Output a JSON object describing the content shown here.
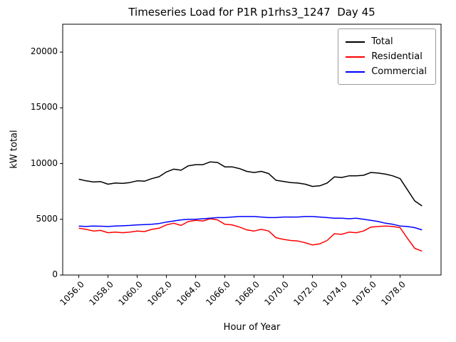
{
  "chart_data": {
    "type": "line",
    "title": "Timeseries Load for P1R p1rhs3_1247  Day 45",
    "xlabel": "Hour of Year",
    "ylabel": "kW total",
    "xlim": [
      1054.9,
      1080.8
    ],
    "ylim": [
      0,
      22500
    ],
    "grid": false,
    "legend_position": "upper right",
    "x_tick_labels": [
      "1056.0",
      "1058.0",
      "1060.0",
      "1062.0",
      "1064.0",
      "1066.0",
      "1068.0",
      "1070.0",
      "1072.0",
      "1074.0",
      "1076.0",
      "1078.0"
    ],
    "y_tick_labels": [
      "0",
      "5000",
      "10000",
      "15000",
      "20000"
    ],
    "x": [
      1056.0,
      1056.5,
      1057.0,
      1057.5,
      1058.0,
      1058.5,
      1059.0,
      1059.5,
      1060.0,
      1060.5,
      1061.0,
      1061.5,
      1062.0,
      1062.5,
      1063.0,
      1063.5,
      1064.0,
      1064.5,
      1065.0,
      1065.5,
      1066.0,
      1066.5,
      1067.0,
      1067.5,
      1068.0,
      1068.5,
      1069.0,
      1069.5,
      1070.0,
      1070.5,
      1071.0,
      1071.5,
      1072.0,
      1072.5,
      1073.0,
      1073.5,
      1074.0,
      1074.5,
      1075.0,
      1075.5,
      1076.0,
      1076.5,
      1077.0,
      1077.5,
      1078.0,
      1078.5,
      1079.0,
      1079.5
    ],
    "series": [
      {
        "name": "Total",
        "color": "#000000",
        "values": [
          8600,
          8450,
          8350,
          8380,
          8150,
          8250,
          8220,
          8300,
          8450,
          8420,
          8650,
          8820,
          9250,
          9500,
          9400,
          9800,
          9900,
          9900,
          10150,
          10100,
          9700,
          9700,
          9550,
          9300,
          9200,
          9300,
          9100,
          8500,
          8400,
          8300,
          8250,
          8150,
          7950,
          8000,
          8250,
          8800,
          8750,
          8900,
          8900,
          8950,
          9200,
          9150,
          9050,
          8900,
          8650,
          7650,
          6650,
          6200
        ]
      },
      {
        "name": "Residential",
        "color": "#ff0000",
        "values": [
          4200,
          4100,
          3950,
          4000,
          3800,
          3850,
          3800,
          3850,
          3950,
          3900,
          4100,
          4200,
          4500,
          4650,
          4450,
          4800,
          4900,
          4850,
          5050,
          4950,
          4550,
          4500,
          4300,
          4050,
          3950,
          4100,
          3950,
          3350,
          3200,
          3100,
          3050,
          2900,
          2700,
          2800,
          3100,
          3700,
          3650,
          3850,
          3800,
          3950,
          4300,
          4350,
          4400,
          4350,
          4250,
          3300,
          2400,
          2150
        ]
      },
      {
        "name": "Commercial",
        "color": "#0000ff",
        "values": [
          4400,
          4350,
          4400,
          4380,
          4350,
          4400,
          4420,
          4450,
          4500,
          4520,
          4550,
          4620,
          4750,
          4850,
          4950,
          5000,
          5000,
          5050,
          5100,
          5150,
          5150,
          5200,
          5250,
          5250,
          5250,
          5200,
          5150,
          5150,
          5200,
          5200,
          5200,
          5250,
          5250,
          5200,
          5150,
          5100,
          5100,
          5050,
          5100,
          5000,
          4900,
          4800,
          4650,
          4550,
          4400,
          4350,
          4250,
          4050
        ]
      }
    ]
  }
}
